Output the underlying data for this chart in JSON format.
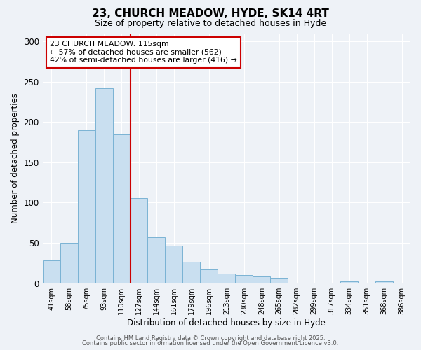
{
  "title": "23, CHURCH MEADOW, HYDE, SK14 4RT",
  "subtitle": "Size of property relative to detached houses in Hyde",
  "xlabel": "Distribution of detached houses by size in Hyde",
  "ylabel": "Number of detached properties",
  "bar_color": "#c9dff0",
  "bar_edge_color": "#7ab3d4",
  "categories": [
    "41sqm",
    "58sqm",
    "75sqm",
    "93sqm",
    "110sqm",
    "127sqm",
    "144sqm",
    "161sqm",
    "179sqm",
    "196sqm",
    "213sqm",
    "230sqm",
    "248sqm",
    "265sqm",
    "282sqm",
    "299sqm",
    "317sqm",
    "334sqm",
    "351sqm",
    "368sqm",
    "386sqm"
  ],
  "values": [
    28,
    50,
    190,
    242,
    185,
    106,
    57,
    47,
    27,
    17,
    12,
    10,
    8,
    7,
    0,
    1,
    0,
    2,
    0,
    2,
    1
  ],
  "vline_x": 4.5,
  "vline_color": "#cc0000",
  "annotation_text": "23 CHURCH MEADOW: 115sqm\n← 57% of detached houses are smaller (562)\n42% of semi-detached houses are larger (416) →",
  "annotation_box_color": "#ffffff",
  "annotation_box_edge_color": "#cc0000",
  "ylim": [
    0,
    310
  ],
  "yticks": [
    0,
    50,
    100,
    150,
    200,
    250,
    300
  ],
  "footer1": "Contains HM Land Registry data © Crown copyright and database right 2025.",
  "footer2": "Contains public sector information licensed under the Open Government Licence v3.0.",
  "background_color": "#eef2f7",
  "grid_color": "#ffffff"
}
